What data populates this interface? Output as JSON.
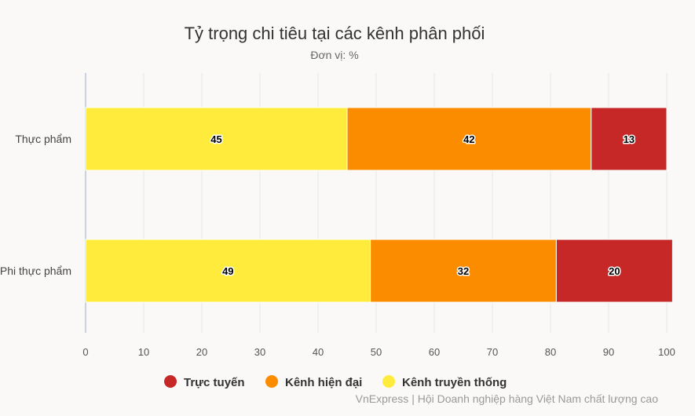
{
  "chart_data": {
    "type": "bar",
    "orientation": "horizontal",
    "stacked": true,
    "title": "Tỷ trọng chi tiêu tại các kênh phân phối",
    "subtitle": "Đơn vị: %",
    "categories": [
      "Thực phẩm",
      "Phi thực phẩm"
    ],
    "series": [
      {
        "name": "Kênh truyền thống",
        "color": "#ffeb3b",
        "values": [
          45,
          49
        ]
      },
      {
        "name": "Kênh hiện đại",
        "color": "#fb8c00",
        "values": [
          42,
          32
        ]
      },
      {
        "name": "Trực tuyến",
        "color": "#c62828",
        "values": [
          13,
          20
        ]
      }
    ],
    "xlim": [
      0,
      100
    ],
    "x_ticks": [
      0,
      10,
      20,
      30,
      40,
      50,
      60,
      70,
      80,
      90,
      100
    ],
    "grid": true,
    "legend_position": "bottom",
    "legend_order": [
      "Trực tuyến",
      "Kênh hiện đại",
      "Kênh truyền thống"
    ]
  },
  "credit": "VnExpress | Hội Doanh nghiệp hàng Việt Nam chất lượng cao"
}
